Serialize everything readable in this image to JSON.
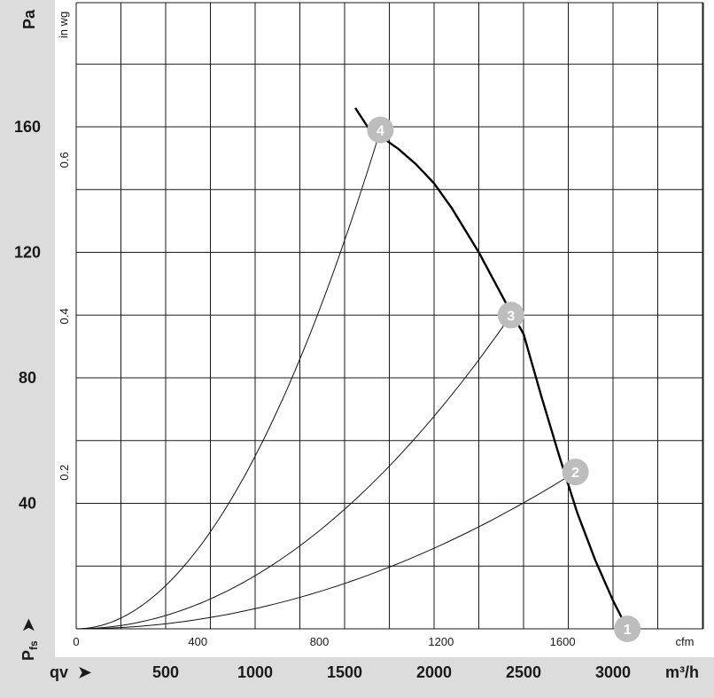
{
  "colors": {
    "panel": "#dcdcdc",
    "grid": "#1a1a1a",
    "fan_curve": "#000000",
    "system_curve": "#111111",
    "marker": "#bdbdbd",
    "marker_text": "#ffffff"
  },
  "labels": {
    "pressure_unit": "Pa",
    "pressure_alt_unit": "in wg",
    "flow_alt_unit": "cfm",
    "flow_unit": "m³/h",
    "pfs_main": "P",
    "pfs_sub": "fs",
    "qv_label": "qv",
    "arrow": "➤"
  },
  "chart_data": {
    "type": "line",
    "title": "",
    "xlabel": "qv",
    "ylabel": "Pfs",
    "x_unit": "m³/h",
    "y_unit": "Pa",
    "xlim": [
      0,
      3500
    ],
    "ylim": [
      0,
      200
    ],
    "grid": true,
    "y_ticks_pa": [
      40,
      80,
      120,
      160
    ],
    "y_ticks_inwg": [
      "0.2",
      "0.4",
      "0.6"
    ],
    "x_ticks_m3h": [
      500,
      1000,
      1500,
      2000,
      2500,
      3000
    ],
    "x_ticks_cfm": [
      0,
      400,
      800,
      1200,
      1600
    ],
    "fan_curve": {
      "x": [
        1560,
        1640,
        1700,
        1800,
        1900,
        2000,
        2100,
        2250,
        2400,
        2500,
        2600,
        2700,
        2800,
        2900,
        3000,
        3080
      ],
      "y": [
        166,
        159,
        157,
        153,
        148,
        142,
        134,
        120,
        104,
        94,
        74,
        55,
        37,
        22,
        9,
        0
      ]
    },
    "system_curves": [
      {
        "point": "4",
        "x": 1700,
        "y": 159
      },
      {
        "point": "3",
        "x": 2430,
        "y": 100
      },
      {
        "point": "2",
        "x": 2790,
        "y": 50
      }
    ],
    "operating_points": [
      {
        "label": "1",
        "x": 3080,
        "y": 0
      },
      {
        "label": "2",
        "x": 2790,
        "y": 50
      },
      {
        "label": "3",
        "x": 2430,
        "y": 100
      },
      {
        "label": "4",
        "x": 1700,
        "y": 159
      }
    ]
  }
}
